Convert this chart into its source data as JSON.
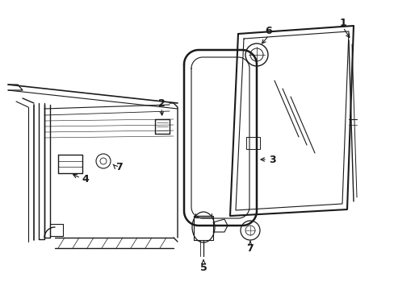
{
  "background_color": "#ffffff",
  "line_color": "#1a1a1a",
  "figsize": [
    4.89,
    3.6
  ],
  "dpi": 100,
  "label_fs": 9,
  "label_fw": "bold"
}
